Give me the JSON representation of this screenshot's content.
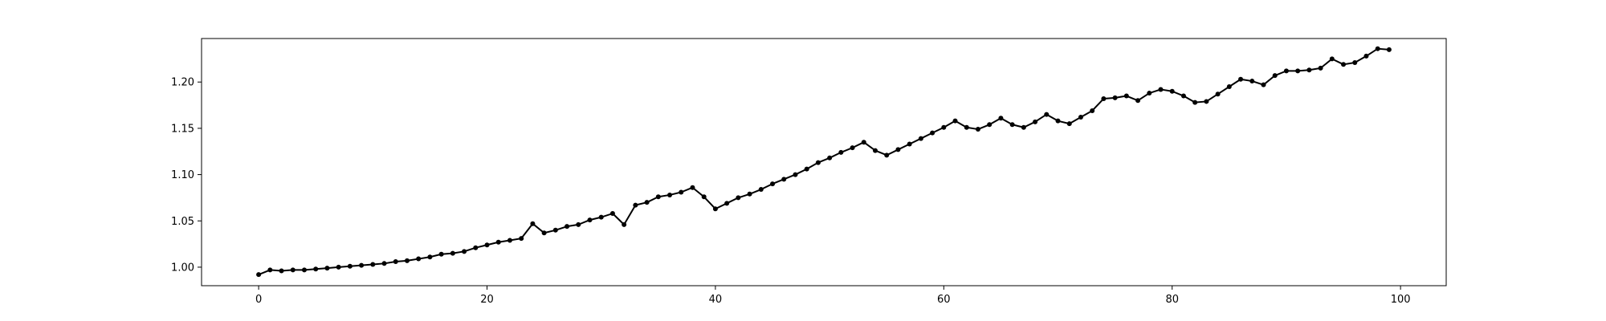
{
  "chart_data": {
    "type": "line",
    "title": "",
    "xlabel": "",
    "ylabel": "",
    "xlim": [
      -5,
      104
    ],
    "ylim": [
      0.98,
      1.247
    ],
    "grid": false,
    "legend": "none",
    "line_color": "#000000",
    "marker": "circle",
    "x_ticks": [
      {
        "value": 0,
        "label": "0"
      },
      {
        "value": 20,
        "label": "20"
      },
      {
        "value": 40,
        "label": "40"
      },
      {
        "value": 60,
        "label": "60"
      },
      {
        "value": 80,
        "label": "80"
      },
      {
        "value": 100,
        "label": "100"
      }
    ],
    "y_ticks": [
      {
        "value": 1.0,
        "label": "1.00"
      },
      {
        "value": 1.05,
        "label": "1.05"
      },
      {
        "value": 1.1,
        "label": "1.10"
      },
      {
        "value": 1.15,
        "label": "1.15"
      },
      {
        "value": 1.2,
        "label": "1.20"
      }
    ],
    "series": [
      {
        "name": "",
        "x": [
          0,
          1,
          2,
          3,
          4,
          5,
          6,
          7,
          8,
          9,
          10,
          11,
          12,
          13,
          14,
          15,
          16,
          17,
          18,
          19,
          20,
          21,
          22,
          23,
          24,
          25,
          26,
          27,
          28,
          29,
          30,
          31,
          32,
          33,
          34,
          35,
          36,
          37,
          38,
          39,
          40,
          41,
          42,
          43,
          44,
          45,
          46,
          47,
          48,
          49,
          50,
          51,
          52,
          53,
          54,
          55,
          56,
          57,
          58,
          59,
          60,
          61,
          62,
          63,
          64,
          65,
          66,
          67,
          68,
          69,
          70,
          71,
          72,
          73,
          74,
          75,
          76,
          77,
          78,
          79,
          80,
          81,
          82,
          83,
          84,
          85,
          86,
          87,
          88,
          89,
          90,
          91,
          92,
          93,
          94,
          95,
          96,
          97,
          98,
          99
        ],
        "values": [
          0.992,
          0.997,
          0.996,
          0.997,
          0.997,
          0.998,
          0.999,
          1.0,
          1.001,
          1.002,
          1.003,
          1.004,
          1.006,
          1.007,
          1.009,
          1.011,
          1.014,
          1.015,
          1.017,
          1.021,
          1.024,
          1.027,
          1.029,
          1.031,
          1.047,
          1.037,
          1.04,
          1.044,
          1.046,
          1.051,
          1.054,
          1.058,
          1.046,
          1.067,
          1.07,
          1.076,
          1.078,
          1.081,
          1.086,
          1.076,
          1.063,
          1.069,
          1.075,
          1.079,
          1.084,
          1.09,
          1.095,
          1.1,
          1.106,
          1.113,
          1.118,
          1.124,
          1.129,
          1.135,
          1.126,
          1.121,
          1.127,
          1.133,
          1.139,
          1.145,
          1.151,
          1.158,
          1.151,
          1.149,
          1.154,
          1.161,
          1.154,
          1.151,
          1.157,
          1.165,
          1.158,
          1.155,
          1.162,
          1.169,
          1.182,
          1.183,
          1.185,
          1.18,
          1.188,
          1.192,
          1.19,
          1.185,
          1.178,
          1.179,
          1.187,
          1.195,
          1.203,
          1.201,
          1.197,
          1.207,
          1.212,
          1.212,
          1.213,
          1.215,
          1.225,
          1.219,
          1.221,
          1.228,
          1.236,
          1.235
        ]
      }
    ]
  }
}
